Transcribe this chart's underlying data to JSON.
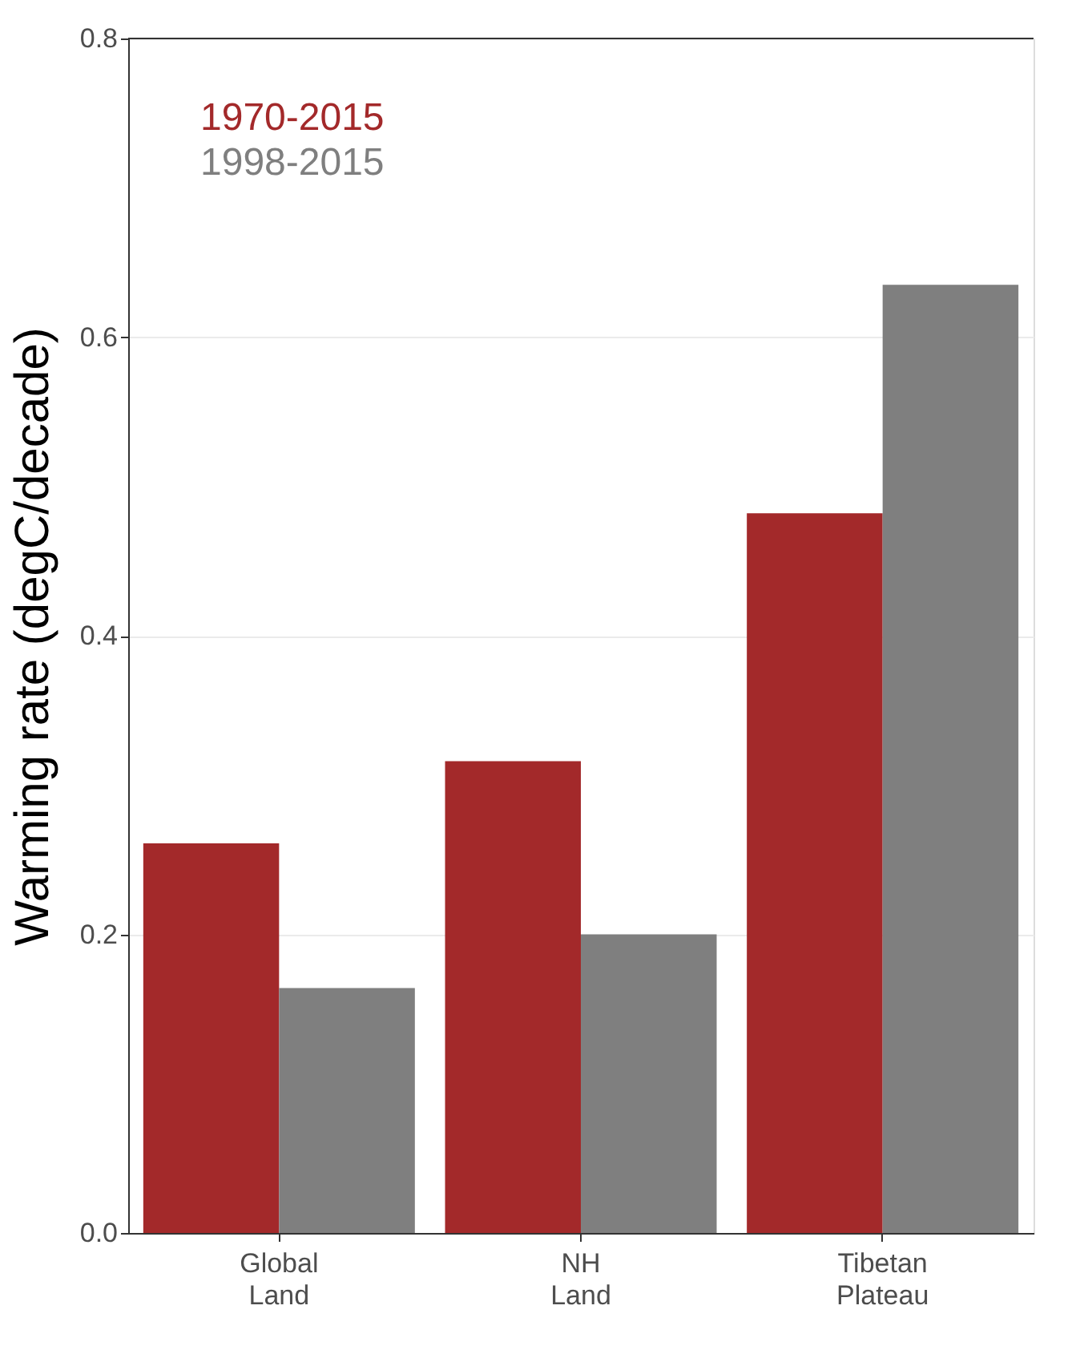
{
  "chart_data": {
    "type": "bar",
    "ylabel": "Warming rate (degC/decade)",
    "categories": [
      "Global\nLand",
      "NH\nLand",
      "Tibetan\nPlateau"
    ],
    "series": [
      {
        "name": "1970-2015",
        "color": "#a3292a",
        "values": [
          0.261,
          0.316,
          0.482
        ]
      },
      {
        "name": "1998-2015",
        "color": "#7f7f7f",
        "values": [
          0.164,
          0.2,
          0.635
        ]
      }
    ],
    "ylim": [
      0,
      0.8
    ],
    "yticks": [
      {
        "value": 0,
        "label": "0.0"
      },
      0.2,
      0.4,
      0.6,
      0.8
    ],
    "grid": "y",
    "legend": "top left"
  }
}
